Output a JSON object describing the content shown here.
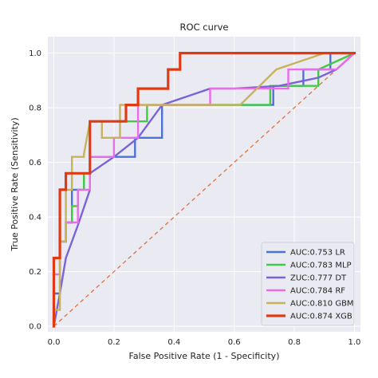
{
  "chart_data": {
    "type": "line",
    "title": "ROC curve",
    "xlabel": "False Positive Rate (1 - Specificity)",
    "ylabel": "True Positive Rate (Sensitivity)",
    "xlim": [
      -0.02,
      1.02
    ],
    "ylim": [
      -0.02,
      1.06
    ],
    "x_ticks": [
      "0.0",
      "0.2",
      "0.4",
      "0.6",
      "0.8",
      "1.0"
    ],
    "y_ticks": [
      "0.0",
      "0.2",
      "0.4",
      "0.6",
      "0.8",
      "1.0"
    ],
    "grid": true,
    "background": "#eaeaf2",
    "legend_position": "lower-right",
    "diagonal": {
      "x": [
        0,
        1
      ],
      "y": [
        0,
        1
      ],
      "color": "#e0703c",
      "style": "dashed"
    },
    "series": [
      {
        "name": "AUC:0.753 LR",
        "color": "#4c72d9",
        "x": [
          0.0,
          0.0,
          0.02,
          0.02,
          0.04,
          0.04,
          0.06,
          0.06,
          0.1,
          0.1,
          0.12,
          0.12,
          0.27,
          0.27,
          0.36,
          0.36,
          0.73,
          0.73,
          0.83,
          0.83,
          0.92,
          0.92,
          1.0
        ],
        "y": [
          0.0,
          0.12,
          0.12,
          0.31,
          0.31,
          0.38,
          0.38,
          0.5,
          0.5,
          0.56,
          0.56,
          0.62,
          0.62,
          0.69,
          0.69,
          0.81,
          0.81,
          0.88,
          0.88,
          0.94,
          0.94,
          1.0,
          1.0
        ]
      },
      {
        "name": "AUC:0.783 MLP",
        "color": "#44c944",
        "x": [
          0.0,
          0.0,
          0.02,
          0.02,
          0.04,
          0.04,
          0.06,
          0.06,
          0.08,
          0.08,
          0.1,
          0.1,
          0.12,
          0.12,
          0.31,
          0.31,
          0.52,
          0.52,
          0.72,
          0.72,
          0.88,
          0.88,
          1.0
        ],
        "y": [
          0.0,
          0.25,
          0.25,
          0.31,
          0.31,
          0.38,
          0.38,
          0.44,
          0.44,
          0.5,
          0.5,
          0.56,
          0.56,
          0.75,
          0.75,
          0.81,
          0.81,
          0.81,
          0.81,
          0.88,
          0.88,
          0.94,
          1.0
        ]
      },
      {
        "name": "ZUC:0.777 DT",
        "color": "#7b62d9",
        "x": [
          0.0,
          0.02,
          0.04,
          0.08,
          0.12,
          0.12,
          0.2,
          0.28,
          0.36,
          0.52,
          0.6,
          0.75,
          0.88,
          0.94,
          1.0
        ],
        "y": [
          0.0,
          0.12,
          0.25,
          0.37,
          0.5,
          0.56,
          0.62,
          0.69,
          0.81,
          0.87,
          0.87,
          0.88,
          0.91,
          0.94,
          1.0
        ]
      },
      {
        "name": "AUC:0.784 RF",
        "color": "#ea6ce8",
        "x": [
          0.0,
          0.0,
          0.02,
          0.02,
          0.04,
          0.04,
          0.08,
          0.08,
          0.12,
          0.12,
          0.2,
          0.2,
          0.28,
          0.28,
          0.52,
          0.52,
          0.78,
          0.78,
          0.94,
          1.0
        ],
        "y": [
          0.0,
          0.19,
          0.19,
          0.31,
          0.31,
          0.38,
          0.38,
          0.5,
          0.5,
          0.62,
          0.62,
          0.69,
          0.69,
          0.81,
          0.81,
          0.87,
          0.87,
          0.94,
          0.94,
          1.0
        ]
      },
      {
        "name": "AUC:0.810 GBM",
        "color": "#c9b35a",
        "x": [
          0.0,
          0.0,
          0.02,
          0.02,
          0.04,
          0.04,
          0.06,
          0.06,
          0.1,
          0.1,
          0.12,
          0.16,
          0.16,
          0.22,
          0.22,
          0.28,
          0.28,
          0.36,
          0.5,
          0.62,
          0.74,
          0.9,
          1.0
        ],
        "y": [
          0.0,
          0.06,
          0.06,
          0.31,
          0.31,
          0.5,
          0.5,
          0.62,
          0.62,
          0.63,
          0.75,
          0.75,
          0.69,
          0.69,
          0.81,
          0.81,
          0.81,
          0.81,
          0.81,
          0.81,
          0.94,
          1.0,
          1.0
        ]
      },
      {
        "name": "AUC:0.874 XGB",
        "color": "#e03a14",
        "x": [
          0.0,
          0.0,
          0.02,
          0.02,
          0.04,
          0.04,
          0.08,
          0.08,
          0.12,
          0.12,
          0.2,
          0.2,
          0.24,
          0.24,
          0.28,
          0.28,
          0.32,
          0.32,
          0.38,
          0.38,
          0.42,
          0.42,
          0.44,
          0.44,
          1.0
        ],
        "y": [
          0.0,
          0.25,
          0.25,
          0.5,
          0.5,
          0.56,
          0.56,
          0.56,
          0.56,
          0.75,
          0.75,
          0.75,
          0.75,
          0.81,
          0.81,
          0.87,
          0.87,
          0.87,
          0.87,
          0.94,
          0.94,
          1.0,
          1.0,
          1.0,
          1.0
        ]
      }
    ]
  }
}
